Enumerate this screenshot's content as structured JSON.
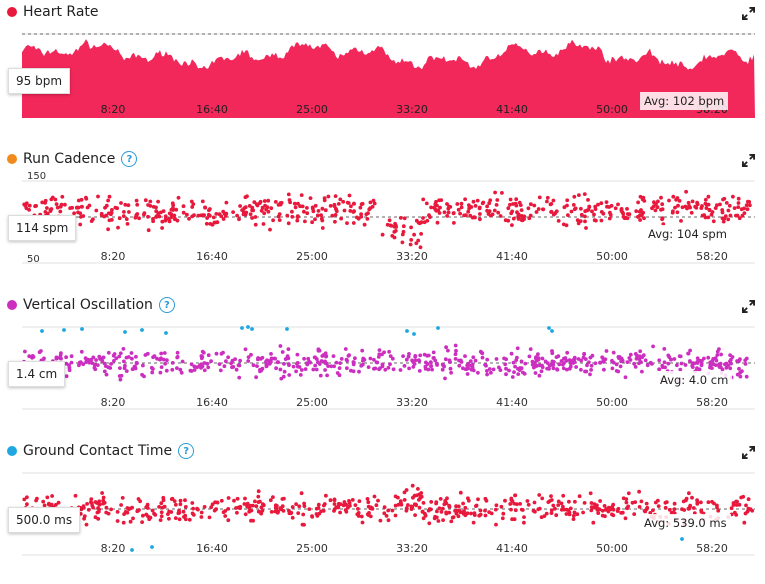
{
  "x_ticks": [
    "8:20",
    "16:40",
    "25:00",
    "33:20",
    "41:40",
    "50:00",
    "58:20"
  ],
  "panels": [
    {
      "title": "Heart Rate",
      "dot_color": "#e8193c",
      "help": false,
      "current_value": "95 bpm",
      "avg_label": "Avg: 102 bpm",
      "y_top_label": "",
      "y_bottom_label": "",
      "chart_data": {
        "type": "area",
        "series_color": "#f2275a",
        "ylim": [
          0,
          135
        ],
        "avg": 102,
        "x_ticks": [
          "8:20",
          "16:40",
          "25:00",
          "33:20",
          "41:40",
          "50:00",
          "58:20"
        ]
      }
    },
    {
      "title": "Run Cadence",
      "dot_color": "#f08a1a",
      "help": true,
      "current_value": "114 spm",
      "avg_label": "Avg: 104 spm",
      "y_top_label": "150",
      "y_bottom_label": "50",
      "chart_data": {
        "type": "scatter",
        "series_color": "#e8193c",
        "ylim": [
          50,
          150
        ],
        "avg": 104,
        "x_ticks": [
          "8:20",
          "16:40",
          "25:00",
          "33:20",
          "41:40",
          "50:00",
          "58:20"
        ]
      }
    },
    {
      "title": "Vertical Oscillation",
      "dot_color": "#cc2fc0",
      "help": true,
      "current_value": "1.4 cm",
      "avg_label": "Avg: 4.0 cm",
      "y_top_label": "",
      "y_bottom_label": "",
      "chart_data": {
        "type": "scatter",
        "series_color": "#cc2fc0",
        "outlier_color": "#1ea7e0",
        "ylim": [
          0,
          8
        ],
        "avg": 4.0,
        "x_ticks": [
          "8:20",
          "16:40",
          "25:00",
          "33:20",
          "41:40",
          "50:00",
          "58:20"
        ]
      }
    },
    {
      "title": "Ground Contact Time",
      "dot_color": "#1ea7e0",
      "help": true,
      "current_value": "500.0 ms",
      "avg_label": "Avg: 539.0 ms",
      "y_top_label": "",
      "y_bottom_label": "",
      "chart_data": {
        "type": "scatter",
        "series_color": "#e8193c",
        "outlier_color": "#1ea7e0",
        "ylim": [
          400,
          700
        ],
        "avg": 539,
        "x_ticks": [
          "8:20",
          "16:40",
          "25:00",
          "33:20",
          "41:40",
          "50:00",
          "58:20"
        ]
      }
    }
  ]
}
